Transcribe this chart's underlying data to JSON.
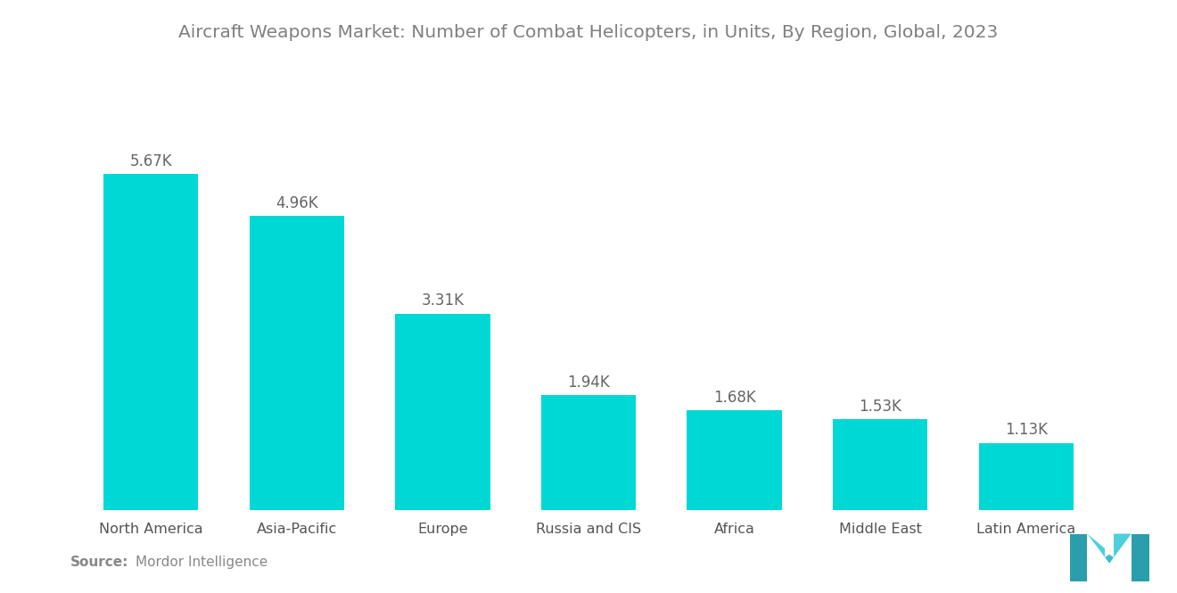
{
  "title": "Aircraft Weapons Market: Number of Combat Helicopters, in Units, By Region, Global, 2023",
  "categories": [
    "North America",
    "Asia-Pacific",
    "Europe",
    "Russia and CIS",
    "Africa",
    "Middle East",
    "Latin America"
  ],
  "values": [
    5670,
    4960,
    3310,
    1940,
    1680,
    1530,
    1130
  ],
  "labels": [
    "5.67K",
    "4.96K",
    "3.31K",
    "1.94K",
    "1.68K",
    "1.53K",
    "1.13K"
  ],
  "bar_color": "#00D8D6",
  "background_color": "#ffffff",
  "title_color": "#808080",
  "label_color": "#666666",
  "xtick_color": "#555555",
  "source_bold": "Source:",
  "source_text": "Mordor Intelligence",
  "title_fontsize": 14.5,
  "label_fontsize": 12,
  "tick_fontsize": 11.5,
  "source_fontsize": 11,
  "bar_width": 0.65,
  "ylim_max": 7000
}
